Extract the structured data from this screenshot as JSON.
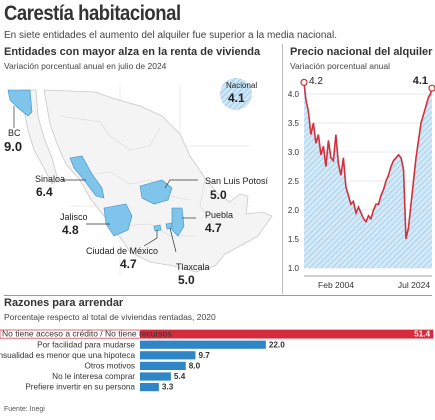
{
  "header": {
    "title": "Carestía habitacional",
    "subtitle": "En siete entidades el aumento del alquiler fue superior a la media nacional."
  },
  "map_section": {
    "title": "Entidades con mayor alza en la renta de vivienda",
    "subtitle": "Variación porcentual anual en julio de 2024",
    "national_label": "Nacional",
    "national_value": "4.1",
    "states": [
      {
        "name": "BC",
        "value": "9.0"
      },
      {
        "name": "Sinaloa",
        "value": "6.4"
      },
      {
        "name": "Jalisco",
        "value": "4.8"
      },
      {
        "name": "Ciudad de México",
        "value": "4.7"
      },
      {
        "name": "San Luis Potosí",
        "value": "5.0"
      },
      {
        "name": "Puebla",
        "value": "4.7"
      },
      {
        "name": "Tlaxcala",
        "value": "5.0"
      }
    ],
    "colors": {
      "highlight": "#7fc4ea",
      "hatch": "#c9e3f3",
      "border": "#3b8fc7"
    }
  },
  "line_section": {
    "title": "Precio nacional del alquiler",
    "subtitle": "Variación porcentual anual"
  },
  "bar_section": {
    "title": "Razones para arrendar",
    "subtitle": "Porcentaje respecto al total de viviendas rentadas, 2020"
  },
  "footer": {
    "source": "Fuente: Inegi"
  },
  "chart_data": [
    {
      "type": "line",
      "title": "Precio nacional del alquiler",
      "subtitle": "Variación porcentual anual",
      "x_ticks": [
        "Feb 2004",
        "Jul 2024"
      ],
      "ylim": [
        1.0,
        4.0
      ],
      "y_ticks": [
        1.0,
        1.5,
        2.0,
        2.5,
        3.0,
        3.5,
        4.0
      ],
      "annotations": [
        {
          "label": "4.2",
          "at": "Feb 2004"
        },
        {
          "label": "4.1",
          "at": "Jul 2024"
        }
      ],
      "line_color": "#d0313d",
      "fill_color": "#c9e3f3",
      "series": [
        {
          "x": [
            2004.1,
            2004.4,
            2004.8,
            2005.2,
            2005.6,
            2006.0,
            2006.4,
            2006.8,
            2007.2,
            2007.6,
            2008.0,
            2008.4,
            2008.8,
            2009.2,
            2009.6,
            2010.0,
            2010.4,
            2010.8,
            2011.2,
            2011.6,
            2012.0,
            2012.4,
            2012.8,
            2013.2,
            2013.6,
            2014.0,
            2014.4,
            2014.8,
            2015.2,
            2015.6,
            2016.0,
            2016.4,
            2016.8,
            2017.2,
            2017.6,
            2018.0,
            2018.4,
            2018.8,
            2019.2,
            2019.6,
            2020.0,
            2020.4,
            2020.8,
            2021.2,
            2021.6,
            2022.0,
            2022.4,
            2022.8,
            2023.2,
            2023.6,
            2024.0,
            2024.3,
            2024.55
          ],
          "values": [
            4.2,
            3.9,
            3.7,
            3.3,
            3.5,
            3.15,
            3.3,
            2.95,
            3.1,
            2.75,
            3.2,
            2.9,
            2.85,
            3.3,
            2.8,
            2.6,
            2.9,
            2.4,
            2.25,
            2.1,
            2.15,
            1.95,
            2.05,
            1.95,
            1.85,
            1.8,
            1.9,
            1.85,
            2.0,
            2.1,
            2.1,
            2.25,
            2.35,
            2.5,
            2.6,
            2.75,
            2.85,
            2.9,
            2.95,
            2.9,
            2.7,
            1.5,
            1.7,
            2.1,
            2.5,
            2.9,
            3.2,
            3.5,
            3.65,
            3.8,
            3.95,
            4.0,
            4.1
          ]
        }
      ]
    },
    {
      "type": "bar",
      "title": "Razones para arrendar",
      "subtitle": "Porcentaje respecto al total de viviendas rentadas, 2020",
      "categories": [
        "No tiene acceso a crédito / No tiene recursos",
        "Por facilidad para mudarse",
        "La mensualidad es menor que una hipoteca",
        "Otros motivos",
        "No le interesa comprar",
        "Prefiere invertir en su persona"
      ],
      "values": [
        51.4,
        22.0,
        9.7,
        8.0,
        5.4,
        3.3
      ],
      "value_labels": [
        "51.4",
        "22.0",
        "9.7",
        "8.0",
        "5.4",
        "3.3"
      ],
      "colors": {
        "highlight": "#d62b3c",
        "default": "#2f86c6"
      }
    }
  ]
}
